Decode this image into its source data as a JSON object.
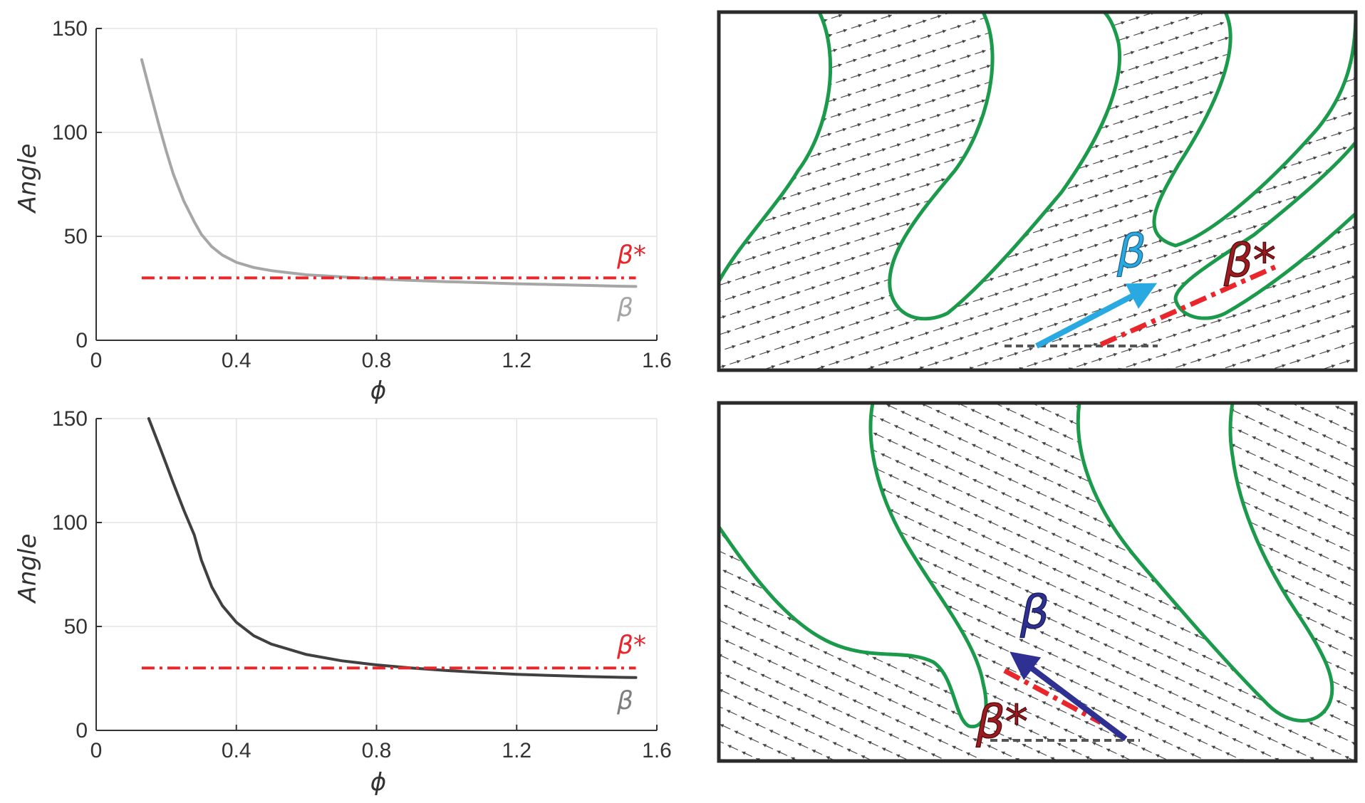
{
  "chart_data": [
    {
      "type": "line",
      "position": "top-left",
      "xlabel": "ϕ",
      "ylabel": "Angle",
      "xlim": [
        0,
        1.6
      ],
      "ylim": [
        0,
        150
      ],
      "xticks": [
        "0",
        "0.4",
        "0.8",
        "1.2",
        "1.6"
      ],
      "yticks": [
        "0",
        "50",
        "100",
        "150"
      ],
      "grid": true,
      "series": [
        {
          "name": "β",
          "style": "solid",
          "color": "#a6a6a6",
          "x": [
            0.13,
            0.15,
            0.18,
            0.2,
            0.22,
            0.25,
            0.28,
            0.3,
            0.33,
            0.36,
            0.4,
            0.45,
            0.5,
            0.6,
            0.7,
            0.8,
            0.9,
            1.0,
            1.1,
            1.2,
            1.3,
            1.4,
            1.5,
            1.54
          ],
          "y": [
            135,
            122,
            103,
            91,
            80,
            67,
            57,
            51,
            45,
            41,
            37.5,
            35,
            33.5,
            31.5,
            30.5,
            29.5,
            28.8,
            28.2,
            27.7,
            27.2,
            26.8,
            26.4,
            26.0,
            25.9
          ]
        },
        {
          "name": "β*",
          "style": "dash-dot",
          "color": "#e8262c",
          "x": [
            0.13,
            1.54
          ],
          "y": [
            30,
            30
          ]
        }
      ]
    },
    {
      "type": "line",
      "position": "bottom-left",
      "xlabel": "ϕ",
      "ylabel": "Angle",
      "xlim": [
        0,
        1.6
      ],
      "ylim": [
        0,
        150
      ],
      "xticks": [
        "0",
        "0.4",
        "0.8",
        "1.2",
        "1.6"
      ],
      "yticks": [
        "0",
        "50",
        "100",
        "150"
      ],
      "grid": true,
      "series": [
        {
          "name": "β",
          "style": "solid",
          "color": "#404040",
          "x": [
            0.15,
            0.18,
            0.2,
            0.22,
            0.25,
            0.28,
            0.3,
            0.33,
            0.36,
            0.4,
            0.45,
            0.5,
            0.6,
            0.7,
            0.8,
            0.9,
            1.0,
            1.1,
            1.2,
            1.3,
            1.4,
            1.5,
            1.54
          ],
          "y": [
            150,
            137,
            128,
            119,
            106,
            94,
            82,
            69,
            60,
            52,
            45.5,
            41.5,
            36.5,
            33.5,
            31.5,
            30,
            28.8,
            27.8,
            27.0,
            26.4,
            25.9,
            25.5,
            25.4
          ]
        },
        {
          "name": "β*",
          "style": "dash-dot",
          "color": "#e8262c",
          "x": [
            0.13,
            1.54
          ],
          "y": [
            30,
            30
          ]
        }
      ]
    }
  ],
  "labels": {
    "top_beta_star": "β*",
    "top_beta": "β",
    "bottom_beta_star": "β*",
    "bottom_beta": "β",
    "flow_top_beta": "β",
    "flow_top_beta_star": "β*",
    "flow_bottom_beta": "β",
    "flow_bottom_beta_star": "β*"
  },
  "colors": {
    "blade_outline": "#1a9a4a",
    "beta_star": "#e8262c",
    "flow_beta_top": "#29a9e1",
    "flow_beta_bottom": "#2e3192",
    "flow_beta_star_text": "#9b1c20",
    "panel_border": "#2b2b2b"
  }
}
